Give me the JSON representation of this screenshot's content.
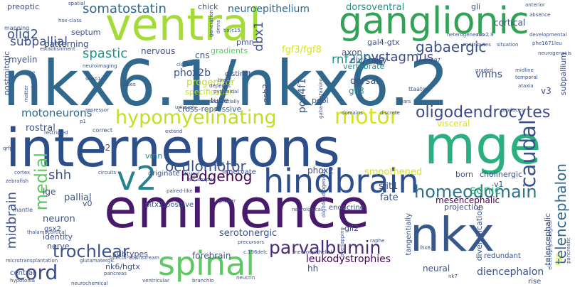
{
  "cloud": {
    "background": "#ffffff",
    "palette": [
      "#440154",
      "#3b528b",
      "#21918c",
      "#5ec962",
      "#fde725"
    ],
    "words": [
      {
        "text": "nkx6.1/nkx6.2",
        "color": "#31688e"
      },
      {
        "text": "interneurons",
        "color": "#2c4e8a"
      },
      {
        "text": "ventral",
        "color": "#a5db36"
      },
      {
        "text": "eminence",
        "color": "#481a6c"
      },
      {
        "text": "mge",
        "color": "#2ab07f"
      },
      {
        "text": "nkx",
        "color": "#38588c"
      },
      {
        "text": "ganglionic",
        "color": "#31a354"
      },
      {
        "text": "hindbrain",
        "color": "#2c4e8a"
      },
      {
        "text": "spinal",
        "color": "#5ec962"
      },
      {
        "text": "v2",
        "color": "#26828e"
      },
      {
        "text": "motor",
        "color": "#d8e219"
      },
      {
        "text": "hypomyelinating",
        "color": "#c2df23"
      },
      {
        "text": "oligodendrocytes",
        "color": "#3e4a89"
      },
      {
        "text": "parvalbumin",
        "color": "#472c7a"
      },
      {
        "text": "homeodomain",
        "color": "#2c728e"
      },
      {
        "text": "caudal",
        "color": "#3b528b"
      },
      {
        "text": "medial",
        "color": "#5ec962"
      },
      {
        "text": "cord",
        "color": "#3e4a89"
      },
      {
        "text": "oculomotor",
        "color": "#3b528b"
      },
      {
        "text": "hedgehog",
        "color": "#440154"
      },
      {
        "text": "trochlear",
        "color": "#3b528b"
      },
      {
        "text": "somatostatin",
        "color": "#31688e"
      },
      {
        "text": "gabaergic",
        "color": "#3b528b"
      },
      {
        "text": "nystagmus",
        "color": "#3e4a89"
      },
      {
        "text": "spastic",
        "color": "#21918c"
      },
      {
        "text": "subpallial",
        "color": "#3b528b"
      },
      {
        "text": "olig2",
        "color": "#3b528b"
      },
      {
        "text": "shh",
        "color": "#3b528b"
      },
      {
        "text": "motoneurons",
        "color": "#31688e"
      },
      {
        "text": "midbrain",
        "color": "#3b528b"
      },
      {
        "text": "telencephalon",
        "color": "#31688e"
      },
      {
        "text": "sonic",
        "color": "#35b779"
      },
      {
        "text": "dorsoventral",
        "color": "#21918c"
      },
      {
        "text": "neuroepithelium",
        "color": "#31688e"
      },
      {
        "text": "dbx1",
        "color": "#3b528b"
      },
      {
        "text": "fgf3/fgf8",
        "color": "#d8e219"
      },
      {
        "text": "rnf220",
        "color": "#21918c"
      },
      {
        "text": "leukodystrophies",
        "color": "#440154"
      },
      {
        "text": "serotonergic",
        "color": "#3b528b"
      },
      {
        "text": "forebrain",
        "color": "#3b528b"
      },
      {
        "text": "smoothened",
        "color": "#d8e219"
      },
      {
        "text": "diencephalon",
        "color": "#3b528b"
      },
      {
        "text": "mesencephalic",
        "color": "#440154"
      },
      {
        "text": "vmns",
        "color": "#3b528b"
      },
      {
        "text": "phox2b",
        "color": "#3b528b"
      },
      {
        "text": "pou4f1",
        "color": "#3b528b"
      },
      {
        "text": "progenitor",
        "color": "#c2df23"
      },
      {
        "text": "pallial",
        "color": "#3b528b"
      },
      {
        "text": "rostral",
        "color": "#3b528b"
      },
      {
        "text": "cortical",
        "color": "#3b528b"
      },
      {
        "text": "septum",
        "color": "#3b528b"
      },
      {
        "text": "patterning",
        "color": "#3b528b"
      },
      {
        "text": "preoptic",
        "color": "#3b528b"
      },
      {
        "text": "chick",
        "color": "#3b528b"
      },
      {
        "text": "myelin",
        "color": "#3b528b"
      },
      {
        "text": "nervous",
        "color": "#3b528b"
      },
      {
        "text": "gradients",
        "color": "#5ec962"
      },
      {
        "text": "axon",
        "color": "#3b528b"
      },
      {
        "text": "diversity",
        "color": "#3b528b"
      },
      {
        "text": "dorsal",
        "color": "#3b528b"
      },
      {
        "text": "gli3",
        "color": "#21918c"
      },
      {
        "text": "v3",
        "color": "#3b528b"
      },
      {
        "text": "vertebrate",
        "color": "#21918c"
      },
      {
        "text": "gal4-gtx",
        "color": "#3b528b"
      },
      {
        "text": "cns",
        "color": "#3b528b"
      },
      {
        "text": "specification",
        "color": "#c2df23"
      },
      {
        "text": "pool",
        "color": "#3b528b"
      },
      {
        "text": "visceral",
        "color": "#d8e219"
      },
      {
        "text": "cross-repressive",
        "color": "#3b528b"
      },
      {
        "text": "vmn",
        "color": "#21918c"
      },
      {
        "text": "innervate",
        "color": "#3b528b"
      },
      {
        "text": "phox2",
        "color": "#3b528b"
      },
      {
        "text": "p2",
        "color": "#3b528b"
      },
      {
        "text": "lge",
        "color": "#3b528b"
      },
      {
        "text": "neuron",
        "color": "#3b528b"
      },
      {
        "text": "v0",
        "color": "#3b528b"
      },
      {
        "text": "identity",
        "color": "#3b528b"
      },
      {
        "text": "nerve",
        "color": "#3b528b"
      },
      {
        "text": "gsx2",
        "color": "#3b528b"
      },
      {
        "text": "subtypes",
        "color": "#3b528b"
      },
      {
        "text": "nk6/hgtx",
        "color": "#3b528b"
      },
      {
        "text": "hh",
        "color": "#3b528b"
      },
      {
        "text": "fate",
        "color": "#3b528b"
      },
      {
        "text": "slit1",
        "color": "#3b528b"
      },
      {
        "text": "gli2",
        "color": "#3b528b"
      },
      {
        "text": "neural",
        "color": "#3b528b"
      },
      {
        "text": "cholinergic",
        "color": "#3b528b"
      },
      {
        "text": "born",
        "color": "#3b528b"
      },
      {
        "text": "v1",
        "color": "#3b528b"
      },
      {
        "text": "projection",
        "color": "#3b528b"
      },
      {
        "text": "pitx2-positive",
        "color": "#3b528b"
      },
      {
        "text": "originate",
        "color": "#3b528b"
      },
      {
        "text": "endocrine",
        "color": "#3b528b"
      },
      {
        "text": "central",
        "color": "#3b528b"
      },
      {
        "text": "postmitotic",
        "color": "#3b528b"
      },
      {
        "text": "tube",
        "color": "#3b528b"
      },
      {
        "text": "gsh2",
        "color": "#3b528b"
      },
      {
        "text": "gli",
        "color": "#3b528b"
      },
      {
        "text": "subpallium",
        "color": "#3b528b"
      },
      {
        "text": "telencephalic",
        "color": "#3b528b"
      },
      {
        "text": "diversification",
        "color": "#3b528b"
      },
      {
        "text": "tangentially",
        "color": "#3b528b"
      },
      {
        "text": "cge",
        "color": "#d8e219"
      },
      {
        "text": "rise",
        "color": "#3b528b"
      },
      {
        "text": "redundant",
        "color": "#3b528b"
      },
      {
        "text": "pmn",
        "color": "#3b528b"
      },
      {
        "text": "distinct",
        "color": "#3b528b"
      },
      {
        "text": "neurogenesis",
        "color": "#3b528b"
      },
      {
        "text": "spatial",
        "color": "#3b528b"
      },
      {
        "text": "hox-class",
        "color": "#3b528b"
      },
      {
        "text": "mapping",
        "color": "#3b528b"
      },
      {
        "text": "establishment",
        "color": "#3b528b"
      },
      {
        "text": "neuroimaging",
        "color": "#3b528b"
      },
      {
        "text": "matter",
        "color": "#3b528b"
      },
      {
        "text": "populations",
        "color": "#3b528b"
      },
      {
        "text": "shhp1",
        "color": "#3b528b"
      },
      {
        "text": "codes",
        "color": "#3b528b"
      },
      {
        "text": "uniquely",
        "color": "#3b528b"
      },
      {
        "text": "sequentially",
        "color": "#3b528b"
      },
      {
        "text": "pyramidal",
        "color": "#3b528b"
      },
      {
        "text": "depends",
        "color": "#3b528b"
      },
      {
        "text": "clonus",
        "color": "#3b528b"
      },
      {
        "text": "p1",
        "color": "#3b528b"
      },
      {
        "text": "repressor",
        "color": "#3b528b"
      },
      {
        "text": "correct",
        "color": "#3b528b"
      },
      {
        "text": "extend",
        "color": "#3b528b"
      },
      {
        "text": "qrfp",
        "color": "#3b528b"
      },
      {
        "text": "restricted",
        "color": "#3b528b"
      },
      {
        "text": "cortex",
        "color": "#3b528b"
      },
      {
        "text": "zebrafish",
        "color": "#3b528b"
      },
      {
        "text": "circuits",
        "color": "#3b528b"
      },
      {
        "text": "striatal",
        "color": "#3b528b"
      },
      {
        "text": "arc-shaped",
        "color": "#3b528b"
      },
      {
        "text": "paired-like",
        "color": "#3b528b"
      },
      {
        "text": "pax6",
        "color": "#3b528b"
      },
      {
        "text": "mantle",
        "color": "#3b528b"
      },
      {
        "text": "thalamocortical",
        "color": "#3b528b"
      },
      {
        "text": "glutamatergic",
        "color": "#3b528b"
      },
      {
        "text": "pancreas",
        "color": "#3b528b"
      },
      {
        "text": "pancreatic",
        "color": "#3b528b"
      },
      {
        "text": "ventricular",
        "color": "#3b528b"
      },
      {
        "text": "branchio",
        "color": "#3b528b"
      },
      {
        "text": "neucrin",
        "color": "#3b528b"
      },
      {
        "text": "neurochemical",
        "color": "#3b528b"
      },
      {
        "text": "hypotonia",
        "color": "#3b528b"
      },
      {
        "text": "microtransplantation",
        "color": "#3b528b"
      },
      {
        "text": "onecut-downstream",
        "color": "#3b528b"
      },
      {
        "text": "c.196delc",
        "color": "#3b528b"
      },
      {
        "text": "neuroepithelial",
        "color": "#3b528b"
      },
      {
        "text": "precursors",
        "color": "#3b528b"
      },
      {
        "text": "raphe",
        "color": "#3b528b"
      },
      {
        "text": "nk7",
        "color": "#3b528b"
      },
      {
        "text": "lhx6",
        "color": "#3b528b"
      },
      {
        "text": "neurological",
        "color": "#3b528b"
      },
      {
        "text": "oligodendrogenesis",
        "color": "#3b528b"
      },
      {
        "text": "overlapping",
        "color": "#3b528b"
      },
      {
        "text": "proper",
        "color": "#3b528b"
      },
      {
        "text": "domains",
        "color": "#3b528b"
      },
      {
        "text": "discrete",
        "color": "#3b528b"
      },
      {
        "text": "produces",
        "color": "#3b528b"
      },
      {
        "text": "absence",
        "color": "#3b528b"
      },
      {
        "text": "anterior",
        "color": "#3b528b"
      },
      {
        "text": "heterogeneous",
        "color": "#3b528b"
      },
      {
        "text": "developmental",
        "color": "#3b528b"
      },
      {
        "text": "phe1671leu",
        "color": "#3b528b"
      },
      {
        "text": "graded",
        "color": "#3b528b"
      },
      {
        "text": "midline",
        "color": "#3b528b"
      },
      {
        "text": "temporal",
        "color": "#3b528b"
      },
      {
        "text": "ataxia",
        "color": "#3b528b"
      },
      {
        "text": "pars",
        "color": "#3b528b"
      },
      {
        "text": "electrophysiological",
        "color": "#3b528b"
      },
      {
        "text": "ttaatga",
        "color": "#3b528b"
      },
      {
        "text": "brain",
        "color": "#3b528b"
      },
      {
        "text": "gaba-containing",
        "color": "#3b528b"
      },
      {
        "text": "p.gln197",
        "color": "#3b528b"
      },
      {
        "text": "nkx2.9",
        "color": "#3b528b"
      },
      {
        "text": "contributes",
        "color": "#3b528b"
      },
      {
        "text": "situation",
        "color": "#3b528b"
      },
      {
        "text": "generation",
        "color": "#3b528b"
      },
      {
        "text": "dmns",
        "color": "#3b528b"
      },
      {
        "text": "tlx/c15",
        "color": "#3b528b"
      }
    ]
  }
}
